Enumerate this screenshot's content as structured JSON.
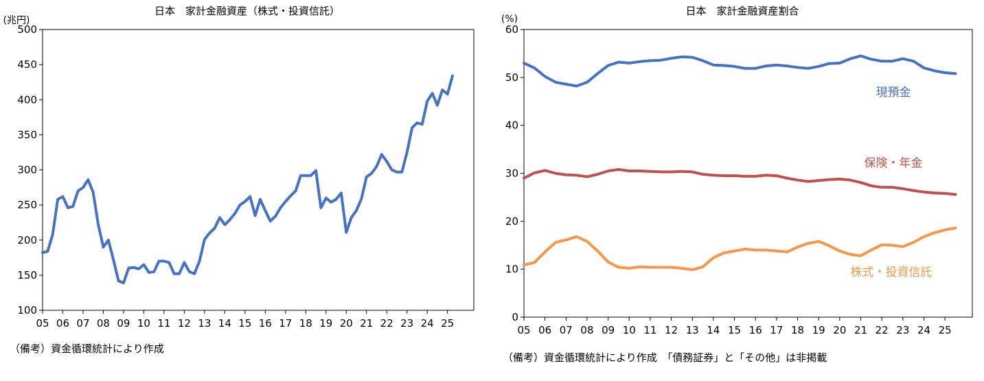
{
  "chart_data": [
    {
      "type": "line",
      "title": "日本　家計金融資産（株式・投資信託）",
      "unit_label": "(兆円)",
      "ylim": [
        100,
        500
      ],
      "yticks": [
        100,
        150,
        200,
        250,
        300,
        350,
        400,
        450,
        500
      ],
      "x_tick_labels": [
        "05",
        "06",
        "07",
        "08",
        "09",
        "10",
        "11",
        "12",
        "13",
        "14",
        "15",
        "16",
        "17",
        "18",
        "19",
        "20",
        "21",
        "22",
        "23",
        "24",
        "25"
      ],
      "xlim": [
        2005.0,
        2026.3
      ],
      "grid": false,
      "series": [
        {
          "color": "#4472c4",
          "x": [
            2005.0,
            2005.25,
            2005.5,
            2005.75,
            2006.0,
            2006.25,
            2006.5,
            2006.75,
            2007.0,
            2007.25,
            2007.5,
            2007.75,
            2008.0,
            2008.25,
            2008.5,
            2008.75,
            2009.0,
            2009.25,
            2009.5,
            2009.75,
            2010.0,
            2010.25,
            2010.5,
            2010.75,
            2011.0,
            2011.25,
            2011.5,
            2011.75,
            2012.0,
            2012.25,
            2012.5,
            2012.75,
            2013.0,
            2013.25,
            2013.5,
            2013.75,
            2014.0,
            2014.25,
            2014.5,
            2014.75,
            2015.0,
            2015.25,
            2015.5,
            2015.75,
            2016.0,
            2016.25,
            2016.5,
            2016.75,
            2017.0,
            2017.25,
            2017.5,
            2017.75,
            2018.0,
            2018.25,
            2018.5,
            2018.75,
            2019.0,
            2019.25,
            2019.5,
            2019.75,
            2020.0,
            2020.25,
            2020.5,
            2020.75,
            2021.0,
            2021.25,
            2021.5,
            2021.75,
            2022.0,
            2022.25,
            2022.5,
            2022.75,
            2023.0,
            2023.25,
            2023.5,
            2023.75,
            2024.0,
            2024.25,
            2024.5,
            2024.75,
            2025.0,
            2025.25
          ],
          "values": [
            182,
            184,
            208,
            258,
            262,
            246,
            248,
            270,
            275,
            286,
            268,
            222,
            190,
            200,
            172,
            142,
            139,
            160,
            161,
            159,
            165,
            154,
            155,
            170,
            170,
            168,
            152,
            152,
            168,
            155,
            152,
            170,
            201,
            210,
            217,
            232,
            222,
            229,
            238,
            250,
            255,
            262,
            235,
            258,
            242,
            227,
            234,
            246,
            255,
            263,
            270,
            292,
            292,
            292,
            299,
            246,
            260,
            254,
            258,
            267,
            211,
            232,
            242,
            259,
            290,
            295,
            305,
            322,
            312,
            300,
            297,
            297,
            325,
            360,
            367,
            365,
            398,
            409,
            392,
            414,
            408,
            434
          ]
        }
      ]
    },
    {
      "type": "line",
      "title": "日本　家計金融資産割合",
      "unit_label": "(%)",
      "ylim": [
        0,
        60
      ],
      "yticks": [
        0,
        10,
        20,
        30,
        40,
        50,
        60
      ],
      "x_tick_labels": [
        "05",
        "06",
        "07",
        "08",
        "09",
        "10",
        "11",
        "12",
        "13",
        "14",
        "15",
        "16",
        "17",
        "18",
        "19",
        "20",
        "21",
        "22",
        "23",
        "24",
        "25"
      ],
      "xlim": [
        2005.0,
        2026.3
      ],
      "grid": false,
      "series": [
        {
          "name": "現預金",
          "color": "#4472c4",
          "x": [
            2005.0,
            2005.5,
            2006.0,
            2006.5,
            2007.0,
            2007.5,
            2008.0,
            2008.5,
            2009.0,
            2009.5,
            2010.0,
            2010.5,
            2011.0,
            2011.5,
            2012.0,
            2012.5,
            2013.0,
            2013.5,
            2014.0,
            2014.5,
            2015.0,
            2015.5,
            2016.0,
            2016.5,
            2017.0,
            2017.5,
            2018.0,
            2018.5,
            2019.0,
            2019.5,
            2020.0,
            2020.5,
            2021.0,
            2021.5,
            2022.0,
            2022.5,
            2023.0,
            2023.5,
            2024.0,
            2024.5,
            2025.0,
            2025.5
          ],
          "values": [
            53.0,
            52.0,
            50.2,
            49.0,
            48.6,
            48.2,
            49.0,
            50.8,
            52.5,
            53.2,
            53.0,
            53.3,
            53.5,
            53.6,
            54.0,
            54.3,
            54.2,
            53.5,
            52.6,
            52.5,
            52.3,
            51.9,
            51.9,
            52.4,
            52.6,
            52.4,
            52.1,
            51.9,
            52.3,
            52.9,
            53.0,
            53.9,
            54.5,
            53.8,
            53.4,
            53.4,
            53.9,
            53.4,
            52.0,
            51.4,
            51.0,
            50.8
          ]
        },
        {
          "name": "保険・年金",
          "color": "#c0504d",
          "x": [
            2005.0,
            2005.5,
            2006.0,
            2006.5,
            2007.0,
            2007.5,
            2008.0,
            2008.5,
            2009.0,
            2009.5,
            2010.0,
            2010.5,
            2011.0,
            2011.5,
            2012.0,
            2012.5,
            2013.0,
            2013.5,
            2014.0,
            2014.5,
            2015.0,
            2015.5,
            2016.0,
            2016.5,
            2017.0,
            2017.5,
            2018.0,
            2018.5,
            2019.0,
            2019.5,
            2020.0,
            2020.5,
            2021.0,
            2021.5,
            2022.0,
            2022.5,
            2023.0,
            2023.5,
            2024.0,
            2024.5,
            2025.0,
            2025.5
          ],
          "values": [
            29.0,
            30.1,
            30.6,
            30.0,
            29.7,
            29.6,
            29.3,
            29.8,
            30.5,
            30.8,
            30.5,
            30.5,
            30.4,
            30.3,
            30.3,
            30.4,
            30.3,
            29.8,
            29.6,
            29.5,
            29.5,
            29.4,
            29.4,
            29.6,
            29.5,
            29.0,
            28.6,
            28.3,
            28.5,
            28.7,
            28.8,
            28.6,
            28.1,
            27.4,
            27.1,
            27.1,
            26.8,
            26.4,
            26.1,
            25.9,
            25.8,
            25.6
          ]
        },
        {
          "name": "株式・投資信託",
          "color": "#f79646",
          "x": [
            2005.0,
            2005.5,
            2006.0,
            2006.5,
            2007.0,
            2007.5,
            2008.0,
            2008.5,
            2009.0,
            2009.5,
            2010.0,
            2010.5,
            2011.0,
            2011.5,
            2012.0,
            2012.5,
            2013.0,
            2013.5,
            2014.0,
            2014.5,
            2015.0,
            2015.5,
            2016.0,
            2016.5,
            2017.0,
            2017.5,
            2018.0,
            2018.5,
            2019.0,
            2019.5,
            2020.0,
            2020.5,
            2021.0,
            2021.5,
            2022.0,
            2022.5,
            2023.0,
            2023.5,
            2024.0,
            2024.5,
            2025.0,
            2025.5
          ],
          "values": [
            10.9,
            11.4,
            13.6,
            15.6,
            16.1,
            16.8,
            15.8,
            13.8,
            11.5,
            10.4,
            10.2,
            10.5,
            10.4,
            10.4,
            10.4,
            10.2,
            9.9,
            10.5,
            12.4,
            13.4,
            13.8,
            14.2,
            14.0,
            14.0,
            13.8,
            13.6,
            14.6,
            15.4,
            15.8,
            14.9,
            13.8,
            13.1,
            12.8,
            14.0,
            15.1,
            15.0,
            14.7,
            15.6,
            16.8,
            17.6,
            18.2,
            18.6
          ]
        }
      ]
    }
  ],
  "notes": {
    "left": "（備考）資金循環統計により作成",
    "right": "（備考）資金循環統計により作成　「債務証券」と「その他」は非掲載"
  }
}
